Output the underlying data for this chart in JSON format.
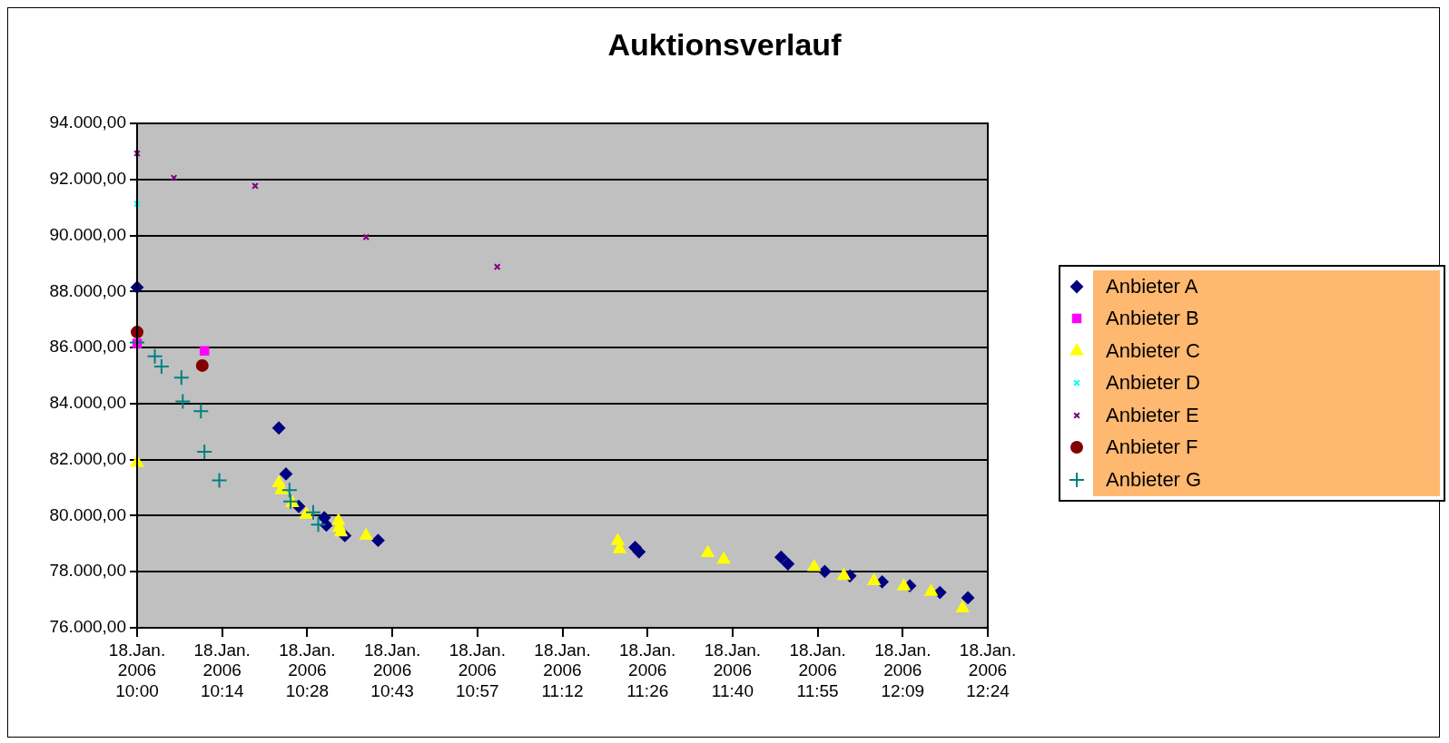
{
  "chart_data": {
    "type": "scatter",
    "title": "Auktionsverlauf",
    "xlim": [
      "2006-01-18T10:00",
      "2006-01-18T12:24"
    ],
    "xticks": [
      {
        "value": "2006-01-18T10:00:00",
        "label": "18.Jan. 2006 10:00"
      },
      {
        "value": "2006-01-18T10:14:24",
        "label": "18.Jan. 2006 10:14"
      },
      {
        "value": "2006-01-18T10:28:48",
        "label": "18.Jan. 2006 10:28"
      },
      {
        "value": "2006-01-18T10:43:12",
        "label": "18.Jan. 2006 10:43"
      },
      {
        "value": "2006-01-18T10:57:36",
        "label": "18.Jan. 2006 10:57"
      },
      {
        "value": "2006-01-18T11:12:00",
        "label": "18.Jan. 2006 11:12"
      },
      {
        "value": "2006-01-18T11:26:24",
        "label": "18.Jan. 2006 11:26"
      },
      {
        "value": "2006-01-18T11:40:48",
        "label": "18.Jan. 2006 11:40"
      },
      {
        "value": "2006-01-18T11:55:12",
        "label": "18.Jan. 2006 11:55"
      },
      {
        "value": "2006-01-18T12:09:36",
        "label": "18.Jan. 2006 12:09"
      },
      {
        "value": "2006-01-18T12:24:00",
        "label": "18.Jan. 2006 12:24"
      }
    ],
    "ylim": [
      76000,
      94000
    ],
    "yticks": [
      {
        "value": 76000,
        "label": "76.000,00"
      },
      {
        "value": 78000,
        "label": "78.000,00"
      },
      {
        "value": 80000,
        "label": "80.000,00"
      },
      {
        "value": 82000,
        "label": "82.000,00"
      },
      {
        "value": 84000,
        "label": "84.000,00"
      },
      {
        "value": 86000,
        "label": "86.000,00"
      },
      {
        "value": 88000,
        "label": "88.000,00"
      },
      {
        "value": 90000,
        "label": "90.000,00"
      },
      {
        "value": 92000,
        "label": "92.000,00"
      },
      {
        "value": 94000,
        "label": "94.000,00"
      }
    ],
    "grid": "y",
    "legend": "right",
    "series": [
      {
        "name": "Anbieter A",
        "color": "#000080",
        "marker": "diamond",
        "x": [
          "2006-01-18T10:00:00",
          "2006-01-18T10:24:00",
          "2006-01-18T10:25:12",
          "2006-01-18T10:27:22",
          "2006-01-18T10:31:41",
          "2006-01-18T10:32:02",
          "2006-01-18T10:35:10",
          "2006-01-18T10:40:48",
          "2006-01-18T11:24:18",
          "2006-01-18T11:24:58",
          "2006-01-18T11:49:01",
          "2006-01-18T11:50:10",
          "2006-01-18T11:56:24",
          "2006-01-18T12:00:40",
          "2006-01-18T12:06:07",
          "2006-01-18T12:10:48",
          "2006-01-18T12:15:54",
          "2006-01-18T12:20:38"
        ],
        "values": [
          88150,
          83130,
          81490,
          80330,
          79930,
          79660,
          79290,
          79120,
          78870,
          78710,
          78520,
          78280,
          78010,
          77850,
          77640,
          77500,
          77260,
          77070
        ]
      },
      {
        "name": "Anbieter B",
        "color": "#ff00ff",
        "marker": "square",
        "x": [
          "2006-01-18T10:00:00",
          "2006-01-18T10:11:24"
        ],
        "values": [
          86150,
          85880
        ]
      },
      {
        "name": "Anbieter C",
        "color": "#ffff00",
        "marker": "triangle",
        "x": [
          "2006-01-18T10:00:00",
          "2006-01-18T10:24:00",
          "2006-01-18T10:24:25",
          "2006-01-18T10:26:17",
          "2006-01-18T10:28:37",
          "2006-01-18T10:34:05",
          "2006-01-18T10:34:12",
          "2006-01-18T10:34:30",
          "2006-01-18T10:38:46",
          "2006-01-18T11:21:22",
          "2006-01-18T11:21:40",
          "2006-01-18T11:36:36",
          "2006-01-18T11:39:18",
          "2006-01-18T11:54:36",
          "2006-01-18T11:59:38",
          "2006-01-18T12:04:44",
          "2006-01-18T12:09:47",
          "2006-01-18T12:14:24",
          "2006-01-18T12:19:44"
        ],
        "values": [
          81890,
          81160,
          80910,
          80450,
          80040,
          79810,
          79580,
          79410,
          79290,
          79100,
          78810,
          78670,
          78440,
          78170,
          77850,
          77670,
          77480,
          77290,
          76700
        ]
      },
      {
        "name": "Anbieter D",
        "color": "#00ffff",
        "marker": "cross",
        "x": [
          "2006-01-18T10:00:00"
        ],
        "values": [
          91130
        ]
      },
      {
        "name": "Anbieter E",
        "color": "#800080",
        "marker": "cross",
        "x": [
          "2006-01-18T10:00:00",
          "2006-01-18T10:06:14",
          "2006-01-18T10:19:59",
          "2006-01-18T10:38:46",
          "2006-01-18T11:00:58"
        ],
        "values": [
          92930,
          92060,
          91770,
          89940,
          88880
        ]
      },
      {
        "name": "Anbieter F",
        "color": "#800000",
        "marker": "circle",
        "x": [
          "2006-01-18T10:00:00",
          "2006-01-18T10:11:02"
        ],
        "values": [
          86550,
          85360
        ]
      },
      {
        "name": "Anbieter G",
        "color": "#008080",
        "marker": "plus",
        "x": [
          "2006-01-18T10:00:00",
          "2006-01-18T10:03:00",
          "2006-01-18T10:04:08",
          "2006-01-18T10:07:30",
          "2006-01-18T10:07:44",
          "2006-01-18T10:10:48",
          "2006-01-18T10:11:24",
          "2006-01-18T10:13:55",
          "2006-01-18T10:25:48",
          "2006-01-18T10:25:59",
          "2006-01-18T10:29:49",
          "2006-01-18T10:30:40"
        ],
        "values": [
          86180,
          85690,
          85320,
          84930,
          84080,
          83730,
          82280,
          81260,
          80910,
          80510,
          80120,
          79680
        ]
      }
    ]
  }
}
